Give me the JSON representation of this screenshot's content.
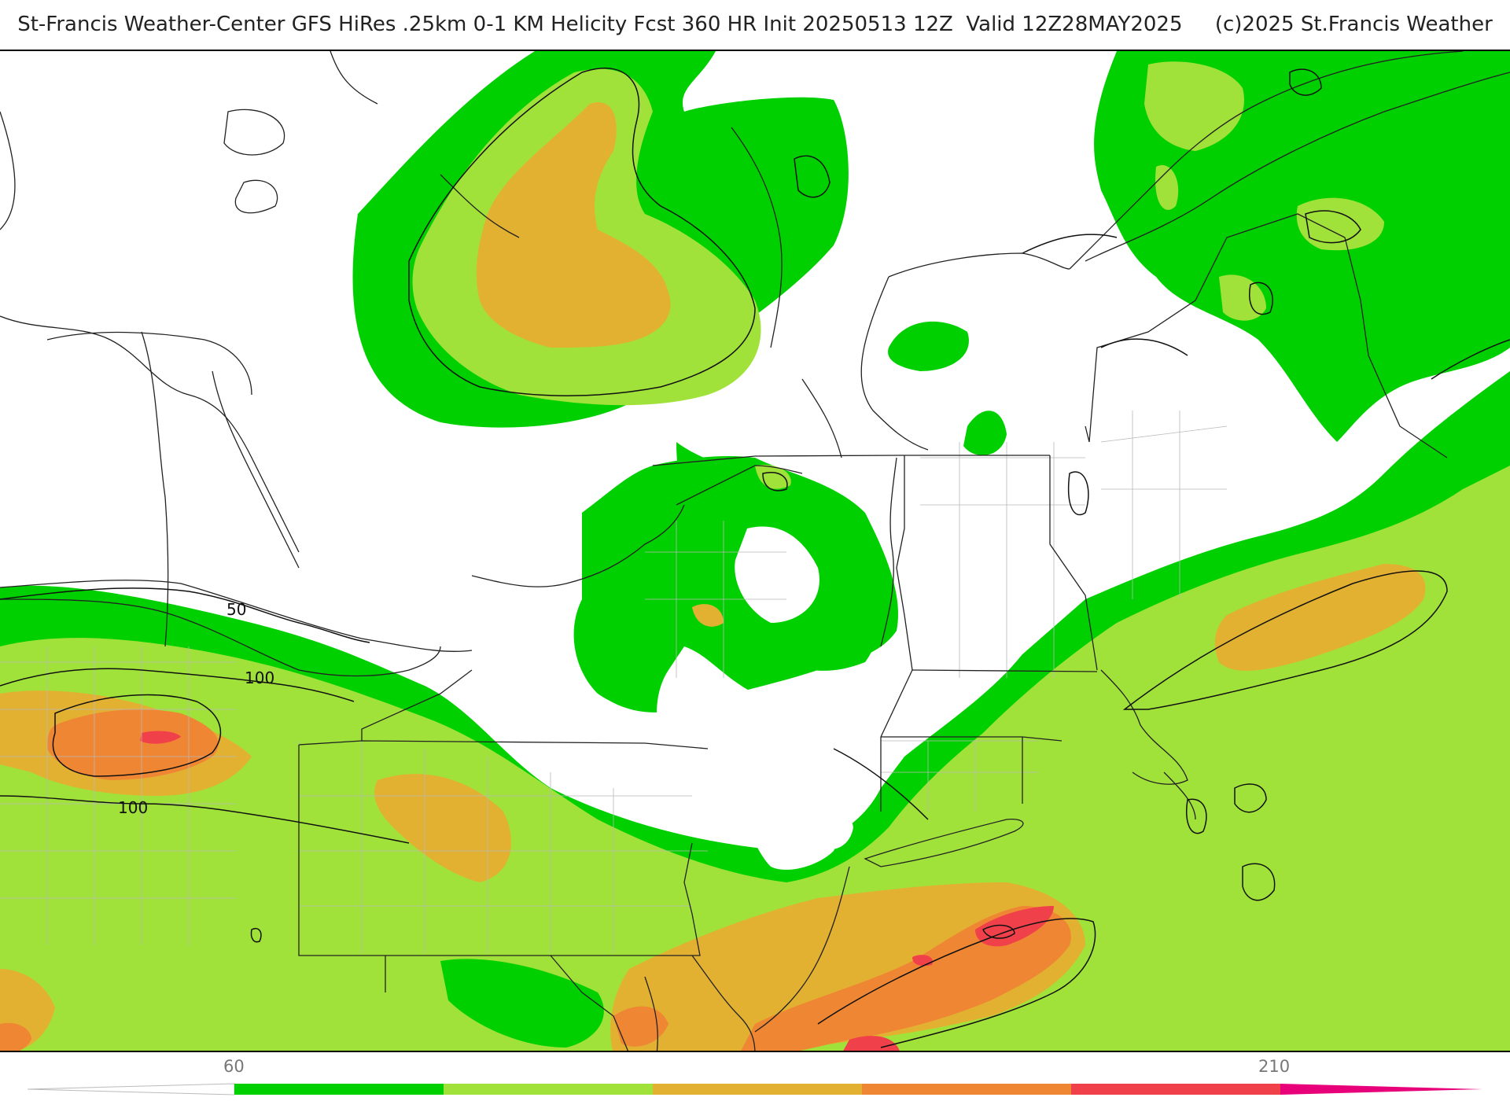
{
  "title": "St-Francis Weather-Center GFS HiRes .25km 0-1 KM Helicity Fcst 360 HR Init 20250513 12Z  Valid 12Z28MAY2025     (c)2025 St.Francis Weather",
  "map": {
    "field": "0-1 KM Helicity",
    "fill_colors": [
      "#00d000",
      "#a0e23a",
      "#e3b131",
      "#ef8633",
      "#f0404a",
      "#e8007a"
    ],
    "contour_labels": [
      "50",
      "100",
      "100"
    ]
  },
  "colorbar": {
    "tick_labels": [
      "60",
      "210"
    ],
    "bins": [
      {
        "color": "#00d000"
      },
      {
        "color": "#a0e23a"
      },
      {
        "color": "#e3b131"
      },
      {
        "color": "#ef8633"
      },
      {
        "color": "#f0404a"
      },
      {
        "color": "#e8007a"
      }
    ]
  }
}
